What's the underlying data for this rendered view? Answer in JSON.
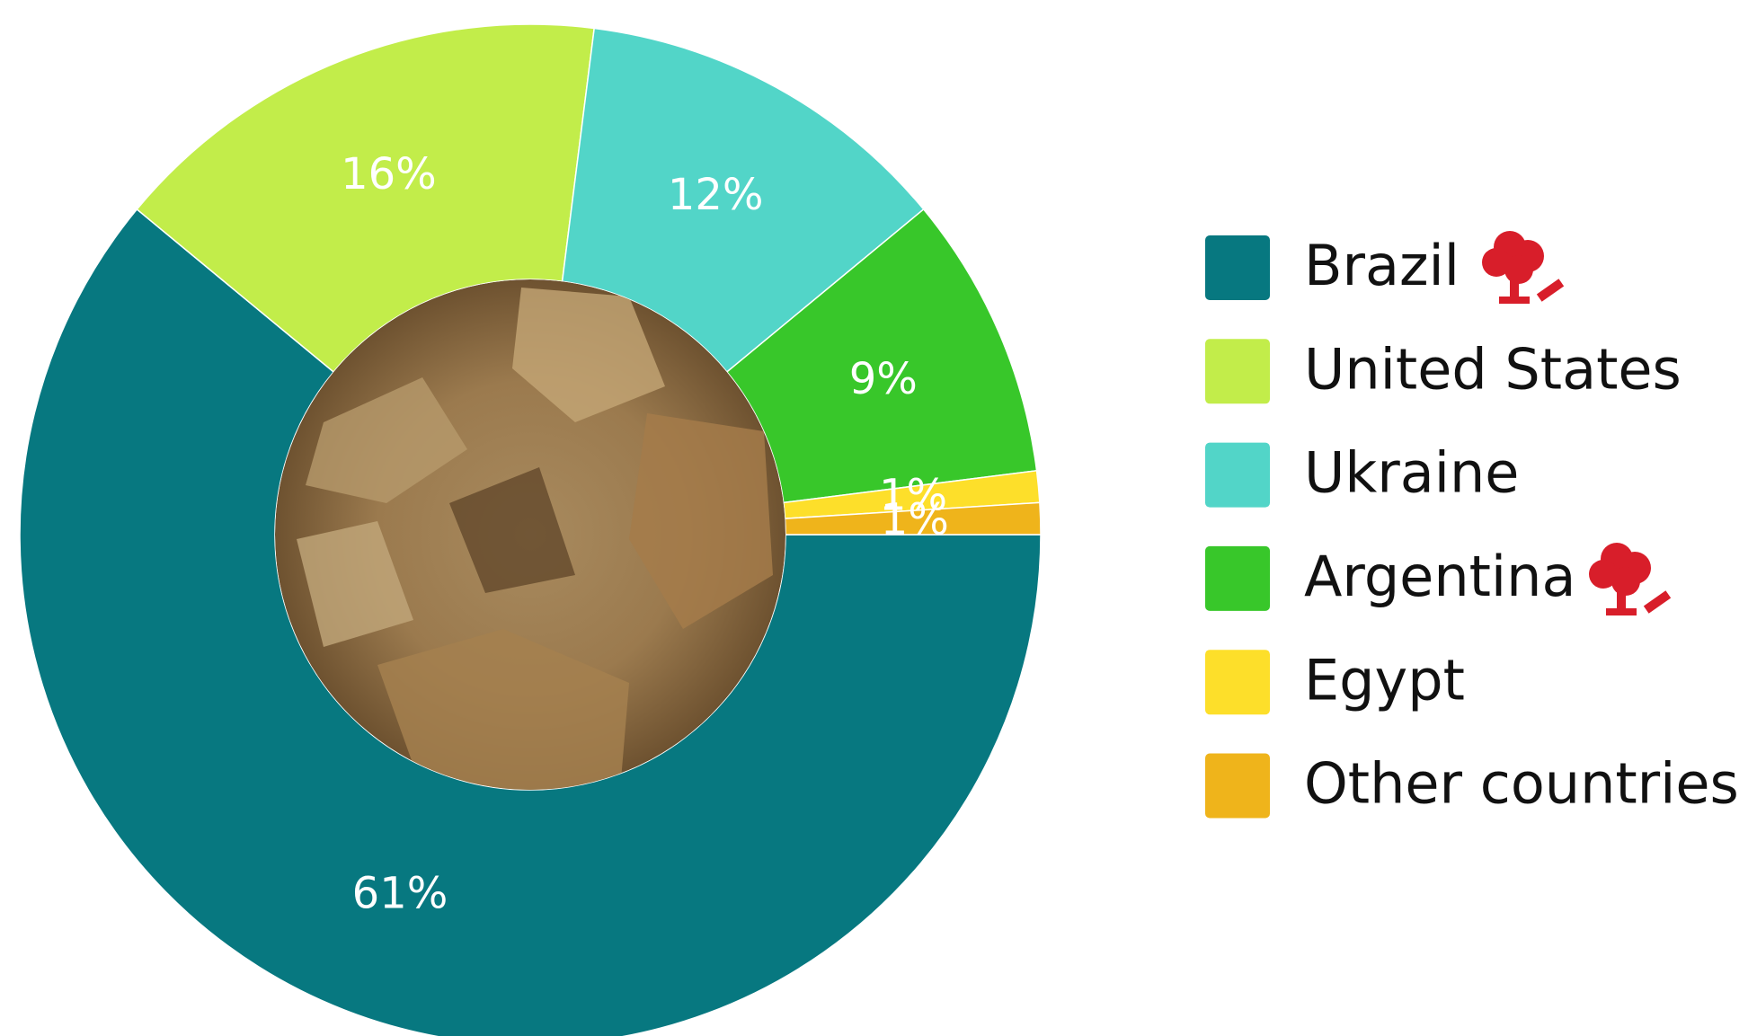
{
  "chart_data": {
    "type": "donut",
    "categories": [
      "Brazil",
      "United States",
      "Ukraine",
      "Argentina",
      "Egypt",
      "Other countries"
    ],
    "values": [
      61,
      16,
      12,
      9,
      1,
      1
    ],
    "value_labels": [
      "61%",
      "16%",
      "12%",
      "9%",
      "1%",
      "1%"
    ],
    "colors": [
      "#077880",
      "#c2ed4a",
      "#52d5c8",
      "#38c72a",
      "#fddf2a",
      "#efb41b"
    ],
    "legend": "right"
  }
}
